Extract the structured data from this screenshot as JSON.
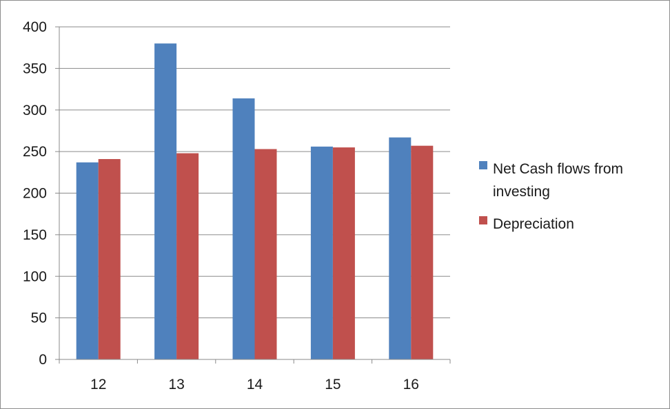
{
  "chart_data": {
    "type": "bar",
    "title": "",
    "xlabel": "",
    "ylabel": "",
    "categories": [
      "12",
      "13",
      "14",
      "15",
      "16"
    ],
    "series": [
      {
        "name": "Net Cash flows from investing",
        "color": "#4f81bd",
        "values": [
          237,
          380,
          314,
          256,
          267
        ]
      },
      {
        "name": "Depreciation",
        "color": "#c0504d",
        "values": [
          241,
          248,
          253,
          255,
          257
        ]
      }
    ],
    "ylim": [
      0,
      400
    ],
    "yticks": [
      0,
      50,
      100,
      150,
      200,
      250,
      300,
      350,
      400
    ],
    "grid": true,
    "legend_position": "right",
    "legend_label_lines": [
      [
        "Net Cash flows from",
        "investing"
      ],
      [
        "Depreciation"
      ]
    ]
  }
}
